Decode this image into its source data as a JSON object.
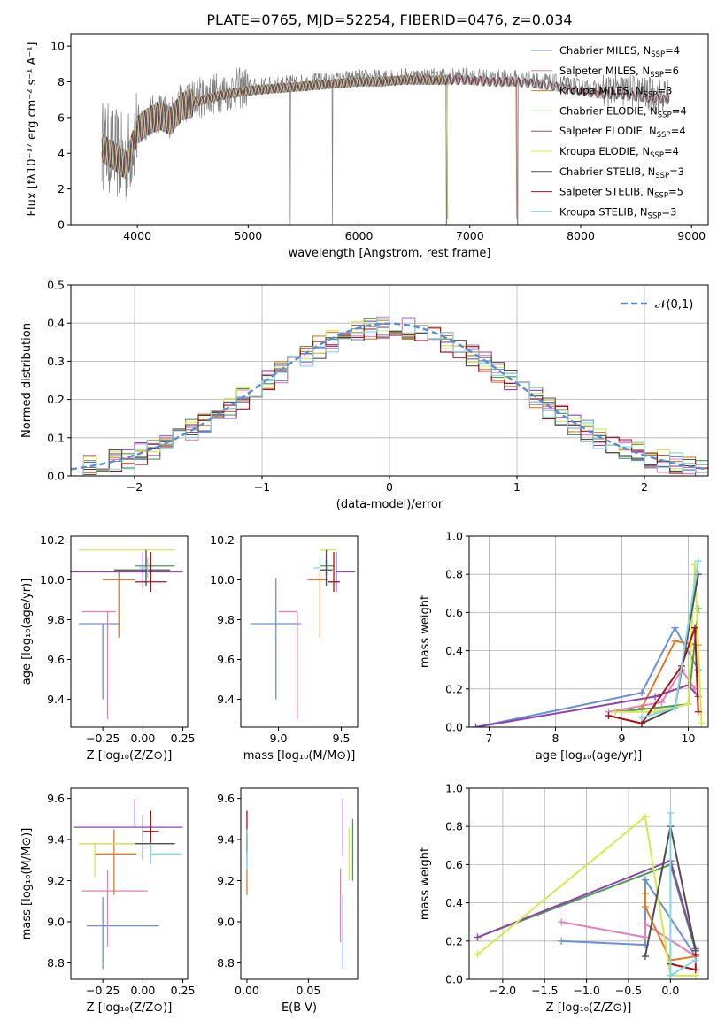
{
  "title": "PLATE=0765, MJD=52254, FIBERID=0476, z=0.034",
  "colors": {
    "Chabrier MILES": "#6a8fd8",
    "Salpeter MILES": "#e67fb9",
    "Kroupa MILES": "#e07a2a",
    "Chabrier ELODIE": "#4f9a4f",
    "Salpeter ELODIE": "#8e44b0",
    "Kroupa ELODIE": "#d4ea4a",
    "Chabrier STELIB": "#4f4f4f",
    "Salpeter STELIB": "#aa1111",
    "Kroupa STELIB": "#7fd6e6",
    "gauss": "#5b8bd4",
    "grid": "#b0b0b0"
  },
  "chart_data": [
    {
      "type": "line",
      "panel": "spectrum",
      "xlabel": "wavelength [Angstrom, rest frame]",
      "ylabel": "Flux [fλ10⁻¹⁷ erg cm⁻² s⁻¹ A⁻¹]",
      "xlim": [
        3400,
        9150
      ],
      "ylim": [
        0,
        10.7
      ],
      "xticks": [
        4000,
        5000,
        6000,
        7000,
        8000,
        9000
      ],
      "yticks": [
        0,
        2,
        4,
        6,
        8,
        10
      ],
      "legend": [
        {
          "model": "Chabrier MILES",
          "nssp": "4"
        },
        {
          "model": "Salpeter MILES",
          "nssp": "6"
        },
        {
          "model": "Kroupa MILES",
          "nssp": "3"
        },
        {
          "model": "Chabrier ELODIE",
          "nssp": "4"
        },
        {
          "model": "Salpeter ELODIE",
          "nssp": "4"
        },
        {
          "model": "Kroupa ELODIE",
          "nssp": "4"
        },
        {
          "model": "Chabrier STELIB",
          "nssp": "3"
        },
        {
          "model": "Salpeter STELIB",
          "nssp": "5"
        },
        {
          "model": "Kroupa STELIB",
          "nssp": "3"
        }
      ],
      "legend_placement": "upper right",
      "continuum": {
        "x": [
          3680,
          3800,
          3900,
          4000,
          4100,
          4200,
          4300,
          4400,
          4500,
          4600,
          4800,
          5000,
          5200,
          5400,
          5600,
          5800,
          6000,
          6200,
          6400,
          6600,
          6800,
          7000,
          7200,
          7400,
          7600,
          7800,
          8000,
          8200,
          8400,
          8600,
          8800
        ],
        "y": [
          4.5,
          4.0,
          3.5,
          5.5,
          6.0,
          6.3,
          6.0,
          6.8,
          7.0,
          7.2,
          7.5,
          7.7,
          7.8,
          7.9,
          8.0,
          8.1,
          8.2,
          8.2,
          8.3,
          8.3,
          8.3,
          8.3,
          8.2,
          8.2,
          8.1,
          7.9,
          7.7,
          7.5,
          7.5,
          7.3,
          7.2
        ]
      },
      "model_end": {
        "MILES": 7430,
        "ELODIE": 6800,
        "STELIB": 8800
      },
      "spikes_to_zero": [
        5380,
        5760,
        6790,
        7430
      ],
      "grid": false
    },
    {
      "type": "line",
      "panel": "residuals",
      "xlabel": "(data-model)/error",
      "ylabel": "Normed distribution",
      "xlim": [
        -2.5,
        2.5
      ],
      "ylim": [
        0,
        0.5
      ],
      "xticks": [
        -2,
        -1,
        0,
        1,
        2
      ],
      "yticks": [
        0.0,
        0.1,
        0.2,
        0.3,
        0.4,
        0.5
      ],
      "legend": [
        "𝒩(0,1)"
      ],
      "legend_placement": "upper right",
      "bin_width": 0.1,
      "grid": true
    },
    {
      "type": "scatter",
      "panel": "age_vs_Z",
      "xlabel": "Z [log₁₀(Z/Z⊙)]",
      "ylabel": "age  [log₁₀(age/yr)]",
      "xlim": [
        -0.45,
        0.28
      ],
      "ylim": [
        9.26,
        10.22
      ],
      "xticks": [
        -0.25,
        0.0,
        0.25
      ],
      "yticks": [
        9.4,
        9.6,
        9.8,
        10.0,
        10.2
      ],
      "series": [
        {
          "model": "Chabrier MILES",
          "x": -0.25,
          "xerr": [
            0.15,
            0.1
          ],
          "y": 9.78,
          "yerr": [
            0.38,
            0.0
          ]
        },
        {
          "model": "Salpeter MILES",
          "x": -0.22,
          "xerr": [
            0.16,
            0.05
          ],
          "y": 9.84,
          "yerr": [
            0.54,
            0.0
          ]
        },
        {
          "model": "Kroupa MILES",
          "x": -0.15,
          "xerr": [
            0.1,
            0.1
          ],
          "y": 10.0,
          "yerr": [
            0.29,
            0.05
          ]
        },
        {
          "model": "Chabrier ELODIE",
          "x": 0.05,
          "xerr": [
            0.1,
            0.15
          ],
          "y": 10.07,
          "yerr": [
            0.04,
            0.02
          ]
        },
        {
          "model": "Salpeter ELODIE",
          "x": 0.0,
          "xerr": [
            0.45,
            0.25
          ],
          "y": 10.04,
          "yerr": [
            0.08,
            0.1
          ]
        },
        {
          "model": "Kroupa ELODIE",
          "x": -0.1,
          "xerr": [
            0.3,
            0.3
          ],
          "y": 10.15,
          "yerr": [
            0.0,
            0.0
          ]
        },
        {
          "model": "Chabrier STELIB",
          "x": 0.02,
          "xerr": [
            0.2,
            0.15
          ],
          "y": 10.05,
          "yerr": [
            0.08,
            0.1
          ]
        },
        {
          "model": "Salpeter STELIB",
          "x": 0.05,
          "xerr": [
            0.1,
            0.1
          ],
          "y": 9.99,
          "yerr": [
            0.05,
            0.15
          ]
        },
        {
          "model": "Kroupa STELIB",
          "x": 0.03,
          "xerr": [
            0.05,
            0.0
          ],
          "y": 10.06,
          "yerr": [
            0.05,
            0.05
          ]
        }
      ]
    },
    {
      "type": "scatter",
      "panel": "age_vs_mass",
      "xlabel": "mass [log₁₀(M/M⊙)]",
      "ylabel": "",
      "xlim": [
        8.7,
        9.63
      ],
      "ylim": [
        9.26,
        10.22
      ],
      "xticks": [
        9.0,
        9.5
      ],
      "yticks": [
        9.4,
        9.6,
        9.8,
        10.0,
        10.2
      ],
      "series": [
        {
          "model": "Chabrier MILES",
          "x": 8.98,
          "xerr": [
            0.2,
            0.2
          ],
          "y": 9.78,
          "yerr": [
            0.38,
            0.23
          ]
        },
        {
          "model": "Salpeter MILES",
          "x": 9.15,
          "xerr": [
            0.15,
            0.0
          ],
          "y": 9.84,
          "yerr": [
            0.54,
            0.0
          ]
        },
        {
          "model": "Kroupa MILES",
          "x": 9.33,
          "xerr": [
            0.1,
            0.06
          ],
          "y": 10.0,
          "yerr": [
            0.29,
            0.05
          ]
        },
        {
          "model": "Chabrier ELODIE",
          "x": 9.38,
          "xerr": [
            0.05,
            0.06
          ],
          "y": 10.07,
          "yerr": [
            0.05,
            0.03
          ]
        },
        {
          "model": "Salpeter ELODIE",
          "x": 9.46,
          "xerr": [
            0.0,
            0.15
          ],
          "y": 10.04,
          "yerr": [
            0.1,
            0.1
          ]
        },
        {
          "model": "Kroupa ELODIE",
          "x": 9.38,
          "xerr": [
            0.05,
            0.08
          ],
          "y": 10.15,
          "yerr": [
            0.0,
            0.0
          ]
        },
        {
          "model": "Chabrier STELIB",
          "x": 9.38,
          "xerr": [
            0.05,
            0.05
          ],
          "y": 10.05,
          "yerr": [
            0.08,
            0.1
          ]
        },
        {
          "model": "Salpeter STELIB",
          "x": 9.44,
          "xerr": [
            0.05,
            0.05
          ],
          "y": 9.99,
          "yerr": [
            0.05,
            0.15
          ]
        },
        {
          "model": "Kroupa STELIB",
          "x": 9.33,
          "xerr": [
            0.05,
            0.0
          ],
          "y": 10.06,
          "yerr": [
            0.0,
            0.05
          ]
        }
      ]
    },
    {
      "type": "line",
      "panel": "weight_vs_age",
      "xlabel": "age  [log₁₀(age/yr)]",
      "ylabel": "mass weight",
      "xlim": [
        6.7,
        10.3
      ],
      "ylim": [
        0,
        1.0
      ],
      "xticks": [
        7,
        8,
        9,
        10
      ],
      "yticks": [
        0.0,
        0.2,
        0.4,
        0.6,
        0.8,
        1.0
      ],
      "grid": true,
      "series": [
        {
          "model": "Chabrier MILES",
          "x": [
            6.8,
            9.3,
            9.8,
            10.15
          ],
          "y": [
            0.0,
            0.18,
            0.52,
            0.3
          ]
        },
        {
          "model": "Salpeter MILES",
          "x": [
            8.8,
            9.6,
            9.9,
            10.1
          ],
          "y": [
            0.08,
            0.13,
            0.3,
            0.2
          ]
        },
        {
          "model": "Kroupa MILES",
          "x": [
            9.3,
            9.8,
            10.15
          ],
          "y": [
            0.1,
            0.45,
            0.43
          ]
        },
        {
          "model": "Chabrier ELODIE",
          "x": [
            8.9,
            9.5,
            10.0,
            10.15
          ],
          "y": [
            0.08,
            0.1,
            0.12,
            0.62
          ]
        },
        {
          "model": "Salpeter ELODIE",
          "x": [
            6.8,
            9.5,
            10.0,
            10.15
          ],
          "y": [
            0.0,
            0.16,
            0.22,
            0.16
          ]
        },
        {
          "model": "Kroupa ELODIE",
          "x": [
            8.9,
            9.5,
            10.0,
            10.1,
            10.2
          ],
          "y": [
            0.08,
            0.08,
            0.12,
            0.85,
            0.02
          ]
        },
        {
          "model": "Chabrier STELIB",
          "x": [
            9.3,
            9.8,
            10.15
          ],
          "y": [
            0.02,
            0.1,
            0.8
          ]
        },
        {
          "model": "Salpeter STELIB",
          "x": [
            8.8,
            9.3,
            9.9,
            10.1,
            10.15
          ],
          "y": [
            0.06,
            0.02,
            0.32,
            0.52,
            0.08
          ]
        },
        {
          "model": "Kroupa STELIB",
          "x": [
            9.3,
            9.8,
            10.15
          ],
          "y": [
            0.05,
            0.1,
            0.87
          ]
        }
      ]
    },
    {
      "type": "scatter",
      "panel": "mass_vs_Z",
      "xlabel": "Z [log₁₀(Z/Z⊙)]",
      "ylabel": "mass [log₁₀(M/M⊙)]",
      "xlim": [
        -0.45,
        0.28
      ],
      "ylim": [
        8.72,
        9.65
      ],
      "xticks": [
        -0.25,
        0.0,
        0.25
      ],
      "yticks": [
        8.8,
        9.0,
        9.2,
        9.4,
        9.6
      ],
      "series": [
        {
          "model": "Chabrier MILES",
          "x": -0.25,
          "xerr": [
            0.1,
            0.35
          ],
          "y": 8.98,
          "yerr": [
            0.21,
            0.14
          ]
        },
        {
          "model": "Salpeter MILES",
          "x": -0.22,
          "xerr": [
            0.16,
            0.25
          ],
          "y": 9.15,
          "yerr": [
            0.27,
            0.1
          ]
        },
        {
          "model": "Kroupa MILES",
          "x": -0.18,
          "xerr": [
            0.12,
            0.14
          ],
          "y": 9.33,
          "yerr": [
            0.2,
            0.12
          ]
        },
        {
          "model": "Chabrier ELODIE",
          "x": -0.1,
          "xerr": [
            0.3,
            0.3
          ],
          "y": 9.38,
          "yerr": [
            0.0,
            0.0
          ]
        },
        {
          "model": "Salpeter ELODIE",
          "x": -0.05,
          "xerr": [
            0.38,
            0.3
          ],
          "y": 9.46,
          "yerr": [
            0.0,
            0.14
          ]
        },
        {
          "model": "Kroupa ELODIE",
          "x": -0.3,
          "xerr": [
            0.1,
            0.5
          ],
          "y": 9.38,
          "yerr": [
            0.16,
            0.0
          ]
        },
        {
          "model": "Chabrier STELIB",
          "x": 0.0,
          "xerr": [
            0.05,
            0.2
          ],
          "y": 9.38,
          "yerr": [
            0.08,
            0.14
          ]
        },
        {
          "model": "Salpeter STELIB",
          "x": 0.05,
          "xerr": [
            0.05,
            0.05
          ],
          "y": 9.44,
          "yerr": [
            0.1,
            0.1
          ]
        },
        {
          "model": "Kroupa STELIB",
          "x": 0.05,
          "xerr": [
            0.0,
            0.19
          ],
          "y": 9.33,
          "yerr": [
            0.05,
            0.05
          ]
        }
      ]
    },
    {
      "type": "scatter",
      "panel": "mass_vs_ebv",
      "xlabel": "E(B-V)",
      "ylabel": "",
      "xlim": [
        -0.005,
        0.09
      ],
      "ylim": [
        8.72,
        9.65
      ],
      "xticks": [
        0.0,
        0.05
      ],
      "yticks": [
        8.8,
        9.0,
        9.2,
        9.4,
        9.6
      ],
      "series": [
        {
          "model": "Chabrier MILES",
          "x": 0.078,
          "y": 8.95,
          "yerr": [
            0.18,
            0.18
          ]
        },
        {
          "model": "Salpeter MILES",
          "x": 0.076,
          "y": 9.08,
          "yerr": [
            0.18,
            0.18
          ]
        },
        {
          "model": "Kroupa MILES",
          "x": 0.0,
          "y": 9.25,
          "yerr": [
            0.12,
            0.15
          ]
        },
        {
          "model": "Chabrier ELODIE",
          "x": 0.086,
          "y": 9.35,
          "yerr": [
            0.15,
            0.15
          ]
        },
        {
          "model": "Salpeter ELODIE",
          "x": 0.078,
          "y": 9.46,
          "yerr": [
            0.14,
            0.14
          ]
        },
        {
          "model": "Kroupa ELODIE",
          "x": 0.083,
          "y": 9.33,
          "yerr": [
            0.13,
            0.13
          ]
        },
        {
          "model": "Chabrier STELIB",
          "x": 0.0,
          "y": 9.38,
          "yerr": [
            0.05,
            0.05
          ]
        },
        {
          "model": "Salpeter STELIB",
          "x": 0.0,
          "y": 9.44,
          "yerr": [
            0.1,
            0.1
          ]
        },
        {
          "model": "Kroupa STELIB",
          "x": 0.0,
          "y": 9.35,
          "yerr": [
            0.1,
            0.1
          ]
        }
      ]
    },
    {
      "type": "line",
      "panel": "weight_vs_Z",
      "xlabel": "Z [log₁₀(Z/Z⊙)]",
      "ylabel": "mass weight",
      "xlim": [
        -2.4,
        0.45
      ],
      "ylim": [
        0,
        1.0
      ],
      "xticks": [
        -2.0,
        -1.5,
        -1.0,
        -0.5,
        0.0
      ],
      "yticks": [
        0.0,
        0.2,
        0.4,
        0.6,
        0.8,
        1.0
      ],
      "grid": true,
      "series": [
        {
          "model": "Chabrier MILES",
          "x": [
            -1.3,
            -0.3,
            -0.3,
            0.3
          ],
          "y": [
            0.2,
            0.18,
            0.52,
            0.12
          ]
        },
        {
          "model": "Salpeter MILES",
          "x": [
            -1.3,
            -0.3,
            -0.3,
            0.3
          ],
          "y": [
            0.3,
            0.22,
            0.29,
            0.12
          ]
        },
        {
          "model": "Kroupa MILES",
          "x": [
            -0.3,
            -0.3,
            0.0,
            0.3
          ],
          "y": [
            0.45,
            0.38,
            0.1,
            0.12
          ]
        },
        {
          "model": "Chabrier ELODIE",
          "x": [
            -2.3,
            0.0,
            0.3
          ],
          "y": [
            0.22,
            0.6,
            0.15
          ]
        },
        {
          "model": "Salpeter ELODIE",
          "x": [
            -2.3,
            0.0,
            0.3
          ],
          "y": [
            0.22,
            0.62,
            0.16
          ]
        },
        {
          "model": "Kroupa ELODIE",
          "x": [
            -2.3,
            -0.3,
            0.0,
            0.3
          ],
          "y": [
            0.13,
            0.85,
            0.02,
            0.02
          ]
        },
        {
          "model": "Chabrier STELIB",
          "x": [
            -0.3,
            0.0,
            0.3
          ],
          "y": [
            0.12,
            0.8,
            0.15
          ]
        },
        {
          "model": "Salpeter STELIB",
          "x": [
            0.0,
            0.3,
            0.3
          ],
          "y": [
            0.08,
            0.05,
            0.13
          ]
        },
        {
          "model": "Kroupa STELIB",
          "x": [
            0.0,
            0.0,
            0.3
          ],
          "y": [
            0.87,
            0.02,
            0.1
          ]
        }
      ]
    }
  ]
}
